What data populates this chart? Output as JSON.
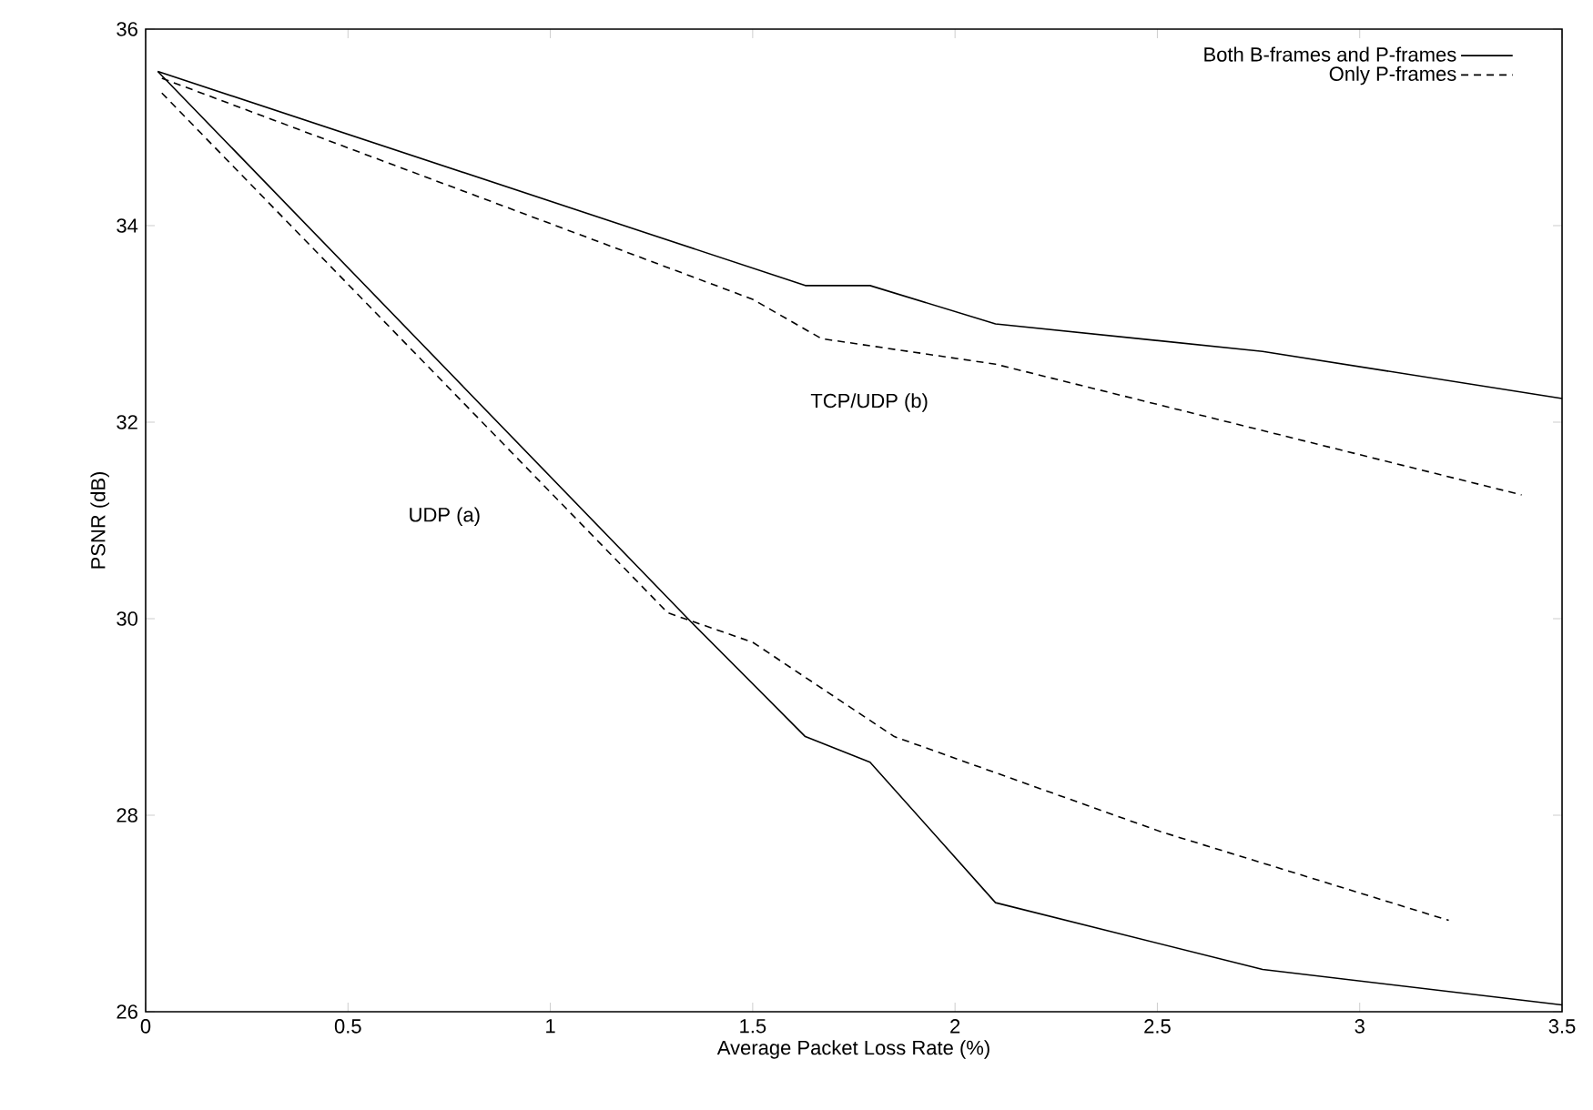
{
  "chart_data": {
    "type": "line",
    "xlabel": "Average Packet Loss Rate (%)",
    "ylabel": "PSNR (dB)",
    "xlim": [
      0,
      3.5
    ],
    "ylim": [
      26,
      36
    ],
    "xticks": [
      0,
      0.5,
      1,
      1.5,
      2,
      2.5,
      3,
      3.5
    ],
    "yticks": [
      26,
      28,
      30,
      32,
      34,
      36
    ],
    "grid": false,
    "legend": "top right",
    "marker": "none",
    "series": [
      {
        "name": "Both B-frames and P-frames",
        "color": "#000000",
        "line_style": "solid",
        "x": [
          0.03,
          1.63,
          1.79,
          2.1,
          2.76,
          3.5
        ],
        "values": [
          35.57,
          33.39,
          33.39,
          33.0,
          32.72,
          32.24
        ]
      },
      {
        "name": "Only P-frames",
        "color": "#000000",
        "line_style": "dashed",
        "x": [
          0.04,
          1.5,
          1.67,
          2.1,
          3.4
        ],
        "values": [
          35.5,
          33.25,
          32.85,
          32.59,
          31.26
        ]
      },
      {
        "color": "#000000",
        "line_style": "solid",
        "x": [
          0.03,
          1.34,
          1.63,
          1.79,
          2.1,
          2.76,
          3.5
        ],
        "values": [
          35.57,
          30.0,
          28.8,
          28.54,
          27.11,
          26.43,
          26.07
        ]
      },
      {
        "color": "#000000",
        "line_style": "dashed",
        "x": [
          0.04,
          1.29,
          1.5,
          1.85,
          2.51,
          3.22
        ],
        "values": [
          35.35,
          30.06,
          29.76,
          28.8,
          27.83,
          26.93
        ]
      }
    ],
    "annotations": [
      "UDP (a)",
      "TCP/UDP (b)"
    ]
  }
}
